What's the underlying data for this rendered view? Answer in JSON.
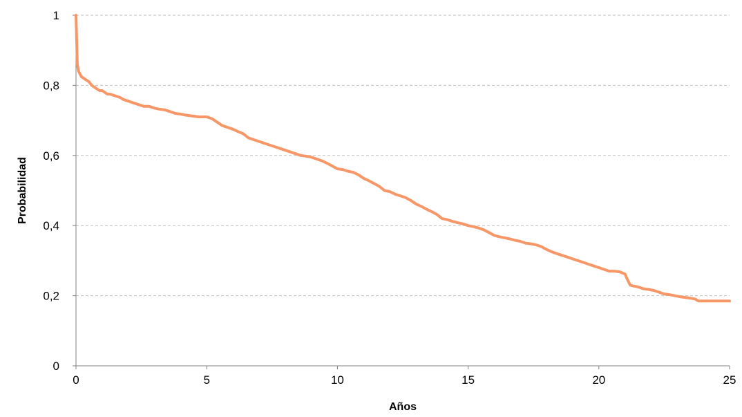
{
  "chart_data": {
    "type": "line",
    "title": "",
    "xlabel": "Años",
    "ylabel": "Probabilidad",
    "xlim": [
      0,
      25
    ],
    "ylim": [
      0,
      1
    ],
    "x_ticks": [
      "0",
      "5",
      "10",
      "15",
      "20",
      "25"
    ],
    "y_ticks": [
      "0",
      "0,2",
      "0,4",
      "0,6",
      "0,8",
      "1"
    ],
    "x_tick_values": [
      0,
      5,
      10,
      15,
      20,
      25
    ],
    "y_tick_values": [
      0,
      0.2,
      0.4,
      0.6,
      0.8,
      1
    ],
    "grid": "horizontal dashed",
    "legend": "none",
    "colors": {
      "line": "#F79767",
      "grid": "#BFBFBF",
      "axis": "#808080"
    },
    "series": [
      {
        "step": true,
        "x": [
          0,
          0.05,
          0.1,
          0.2,
          0.3,
          0.4,
          0.5,
          0.6,
          0.7,
          0.8,
          0.9,
          1.0,
          1.1,
          1.2,
          1.3,
          1.5,
          1.7,
          1.8,
          2.0,
          2.2,
          2.4,
          2.6,
          2.8,
          3.0,
          3.2,
          3.4,
          3.6,
          3.8,
          4.0,
          4.2,
          4.5,
          4.7,
          5.0,
          5.2,
          5.4,
          5.6,
          5.8,
          6.0,
          6.2,
          6.4,
          6.6,
          6.8,
          7.0,
          7.2,
          7.4,
          7.6,
          7.8,
          8.0,
          8.2,
          8.4,
          8.6,
          8.8,
          9.0,
          9.2,
          9.4,
          9.6,
          9.8,
          10.0,
          10.2,
          10.4,
          10.6,
          10.8,
          11.0,
          11.2,
          11.4,
          11.6,
          11.8,
          12.0,
          12.2,
          12.4,
          12.6,
          12.8,
          13.0,
          13.2,
          13.4,
          13.6,
          13.8,
          14.0,
          14.2,
          14.4,
          14.6,
          14.8,
          15.0,
          15.2,
          15.4,
          15.6,
          15.8,
          16.0,
          16.2,
          16.4,
          16.6,
          16.8,
          17.0,
          17.2,
          17.4,
          17.6,
          17.8,
          18.0,
          18.2,
          18.4,
          18.6,
          18.8,
          19.0,
          19.2,
          19.4,
          19.6,
          19.8,
          20.0,
          20.2,
          20.4,
          20.6,
          20.8,
          21.0,
          21.1,
          21.2,
          21.3,
          21.5,
          21.7,
          21.9,
          22.1,
          22.3,
          22.5,
          22.7,
          22.9,
          23.1,
          23.3,
          23.5,
          23.7,
          23.8,
          24.0,
          24.2,
          24.5,
          24.8,
          25.0
        ],
        "y": [
          1.0,
          0.86,
          0.84,
          0.825,
          0.82,
          0.815,
          0.81,
          0.8,
          0.795,
          0.79,
          0.785,
          0.785,
          0.78,
          0.775,
          0.775,
          0.77,
          0.765,
          0.76,
          0.755,
          0.75,
          0.745,
          0.74,
          0.74,
          0.735,
          0.732,
          0.73,
          0.725,
          0.72,
          0.718,
          0.715,
          0.712,
          0.71,
          0.71,
          0.705,
          0.695,
          0.685,
          0.68,
          0.675,
          0.668,
          0.662,
          0.65,
          0.645,
          0.64,
          0.635,
          0.63,
          0.625,
          0.62,
          0.615,
          0.61,
          0.605,
          0.6,
          0.598,
          0.595,
          0.59,
          0.585,
          0.578,
          0.57,
          0.562,
          0.56,
          0.555,
          0.552,
          0.545,
          0.535,
          0.528,
          0.52,
          0.512,
          0.5,
          0.497,
          0.49,
          0.485,
          0.48,
          0.472,
          0.462,
          0.455,
          0.447,
          0.44,
          0.432,
          0.42,
          0.417,
          0.412,
          0.408,
          0.405,
          0.4,
          0.397,
          0.393,
          0.388,
          0.38,
          0.372,
          0.368,
          0.365,
          0.362,
          0.358,
          0.355,
          0.35,
          0.348,
          0.345,
          0.34,
          0.332,
          0.325,
          0.32,
          0.315,
          0.31,
          0.305,
          0.3,
          0.295,
          0.29,
          0.285,
          0.28,
          0.275,
          0.27,
          0.27,
          0.268,
          0.262,
          0.245,
          0.23,
          0.228,
          0.225,
          0.22,
          0.218,
          0.215,
          0.21,
          0.205,
          0.203,
          0.2,
          0.197,
          0.195,
          0.193,
          0.19,
          0.185,
          0.185,
          0.185,
          0.185,
          0.185,
          0.185
        ]
      }
    ]
  }
}
